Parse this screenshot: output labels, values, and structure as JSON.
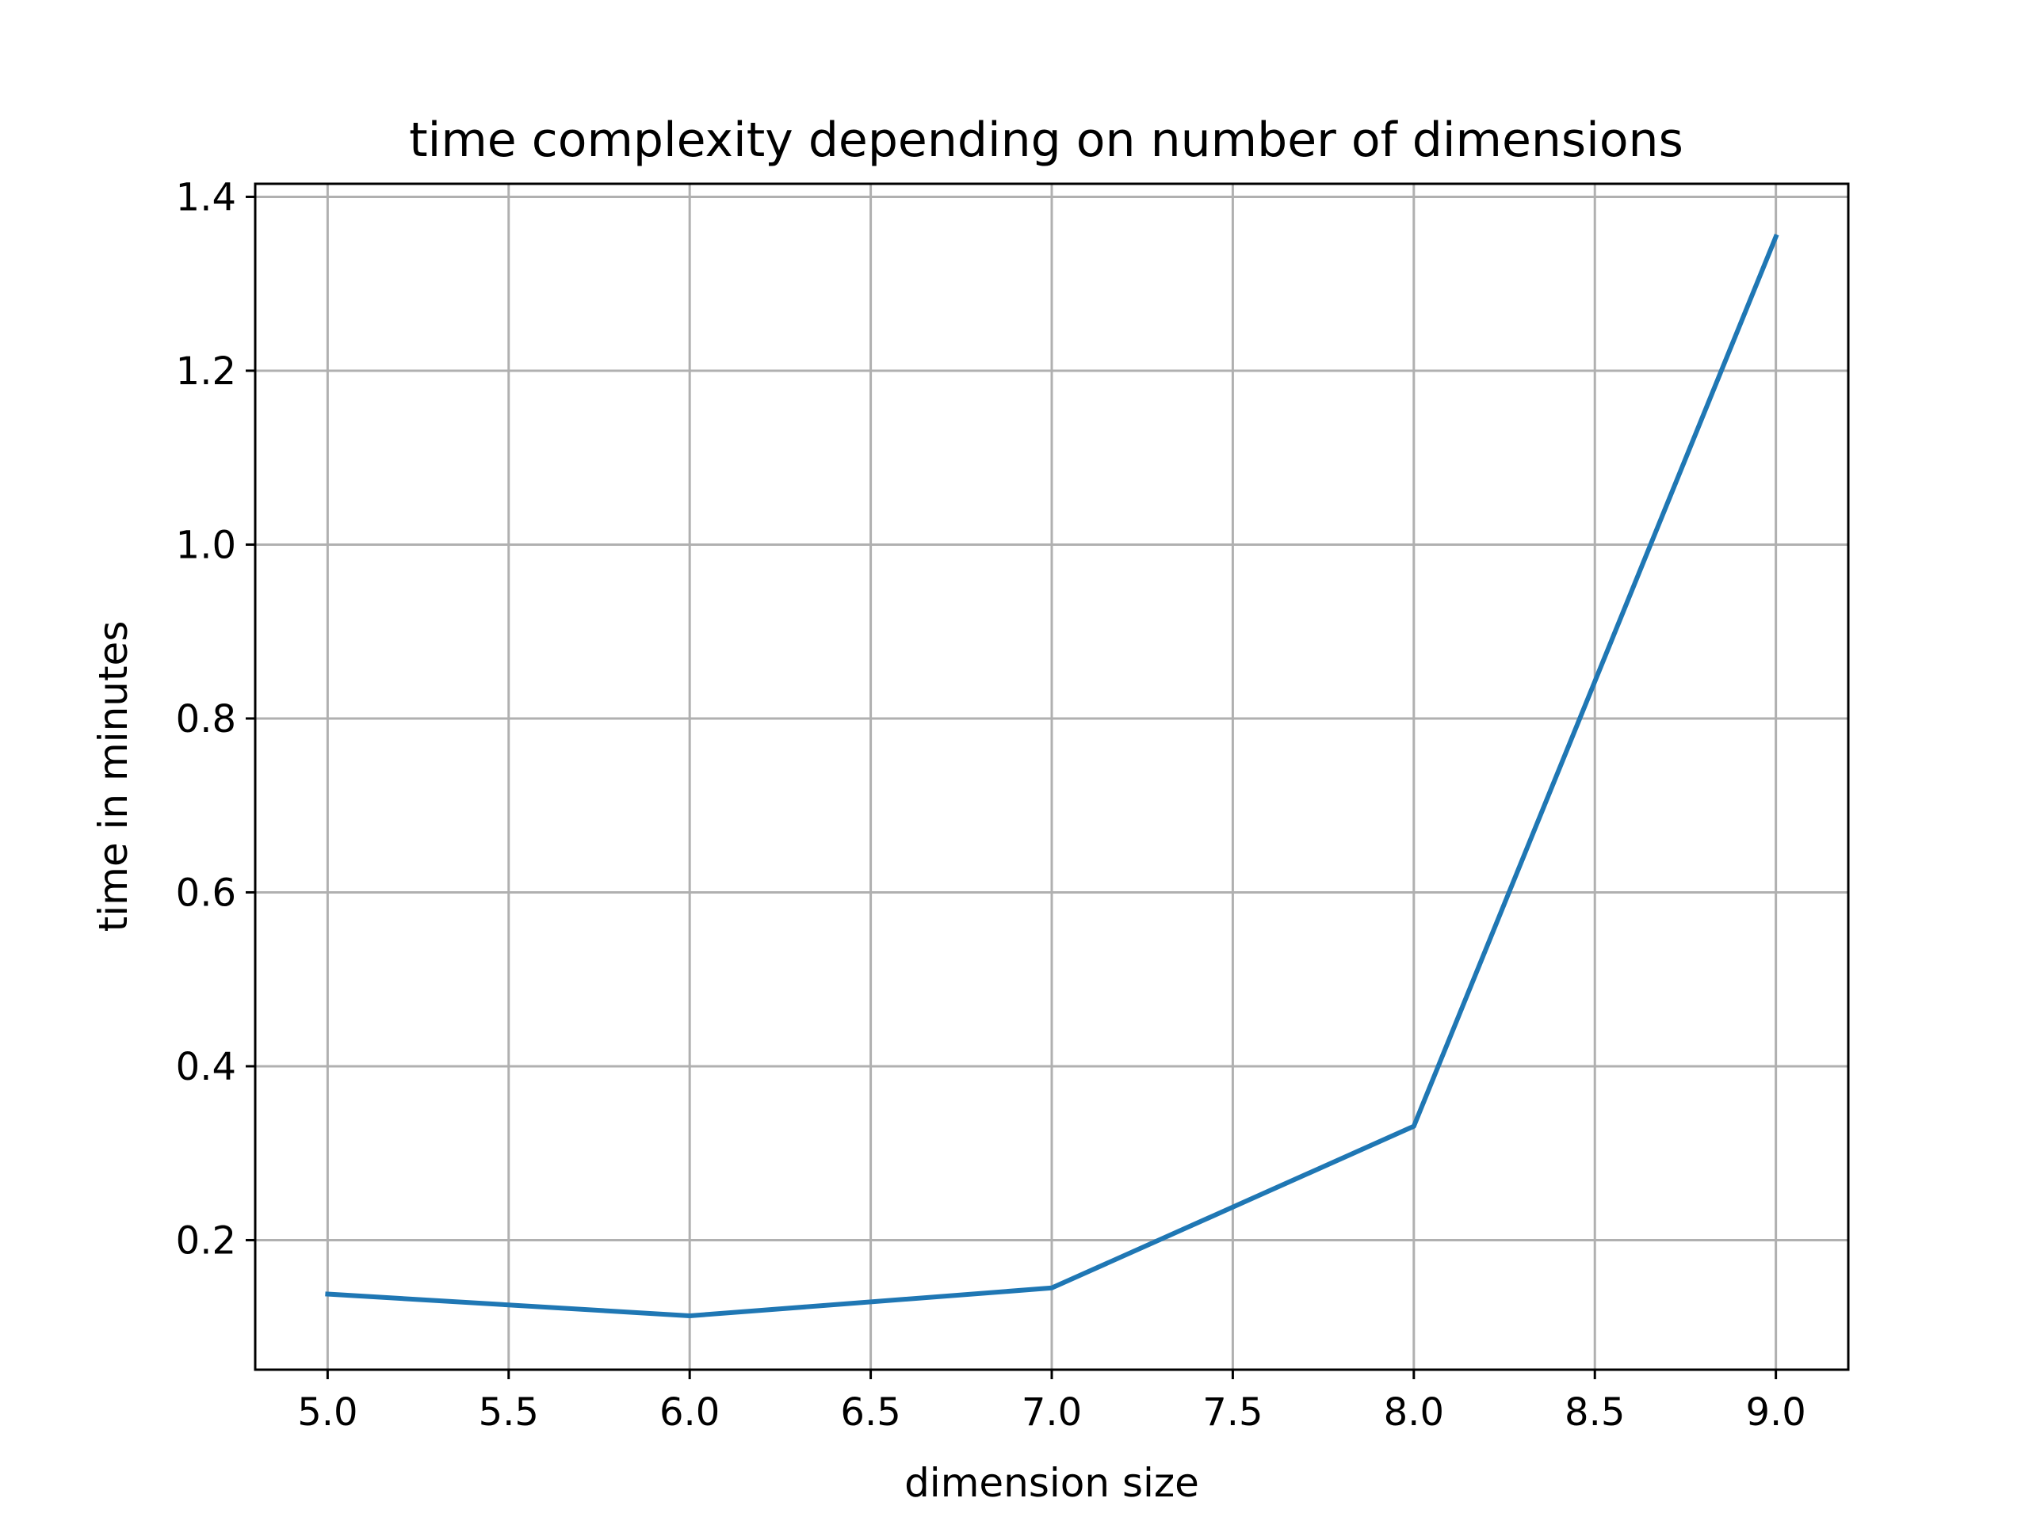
{
  "chart_data": {
    "type": "line",
    "title": "time complexity depending on number of dimensions",
    "xlabel": "dimension size",
    "ylabel": "time in minutes",
    "x": [
      5,
      6,
      7,
      8,
      9
    ],
    "series": [
      {
        "values": [
          0.138,
          0.113,
          0.145,
          0.331,
          1.354
        ],
        "color": "#1f77b4"
      }
    ],
    "xlim": [
      4.8,
      9.2
    ],
    "ylim": [
      0.051,
      1.415
    ],
    "xticks": [
      5.0,
      5.5,
      6.0,
      6.5,
      7.0,
      7.5,
      8.0,
      8.5,
      9.0
    ],
    "xtick_labels": [
      "5.0",
      "5.5",
      "6.0",
      "6.5",
      "7.0",
      "7.5",
      "8.0",
      "8.5",
      "9.0"
    ],
    "yticks": [
      0.2,
      0.4,
      0.6,
      0.8,
      1.0,
      1.2,
      1.4
    ],
    "ytick_labels": [
      "0.2",
      "0.4",
      "0.6",
      "0.8",
      "1.0",
      "1.2",
      "1.4"
    ],
    "grid": true,
    "legend": "none"
  }
}
